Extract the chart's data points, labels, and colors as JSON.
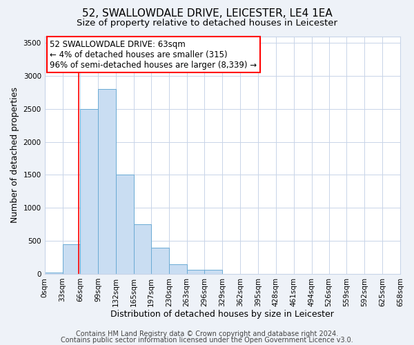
{
  "title": "52, SWALLOWDALE DRIVE, LEICESTER, LE4 1EA",
  "subtitle": "Size of property relative to detached houses in Leicester",
  "xlabel": "Distribution of detached houses by size in Leicester",
  "ylabel": "Number of detached properties",
  "bin_edges": [
    0,
    33,
    66,
    99,
    132,
    165,
    197,
    230,
    263,
    296,
    329,
    362,
    395,
    428,
    461,
    494,
    526,
    559,
    592,
    625,
    658
  ],
  "bin_labels": [
    "0sqm",
    "33sqm",
    "66sqm",
    "99sqm",
    "132sqm",
    "165sqm",
    "197sqm",
    "230sqm",
    "263sqm",
    "296sqm",
    "329sqm",
    "362sqm",
    "395sqm",
    "428sqm",
    "461sqm",
    "494sqm",
    "526sqm",
    "559sqm",
    "592sqm",
    "625sqm",
    "658sqm"
  ],
  "bar_heights": [
    20,
    450,
    2500,
    2800,
    1500,
    750,
    400,
    150,
    60,
    60,
    0,
    0,
    0,
    0,
    0,
    0,
    0,
    0,
    0,
    0
  ],
  "bar_color": "#c9ddf2",
  "bar_edge_color": "#6aaad4",
  "vline_x": 63,
  "vline_color": "red",
  "annotation_line1": "52 SWALLOWDALE DRIVE: 63sqm",
  "annotation_line2": "← 4% of detached houses are smaller (315)",
  "annotation_line3": "96% of semi-detached houses are larger (8,339) →",
  "annotation_box_color": "white",
  "annotation_box_edge_color": "red",
  "ylim": [
    0,
    3600
  ],
  "yticks": [
    0,
    500,
    1000,
    1500,
    2000,
    2500,
    3000,
    3500
  ],
  "footer_line1": "Contains HM Land Registry data © Crown copyright and database right 2024.",
  "footer_line2": "Contains public sector information licensed under the Open Government Licence v3.0.",
  "bg_color": "#eef2f8",
  "plot_bg_color": "#ffffff",
  "grid_color": "#c8d4e8",
  "title_fontsize": 11,
  "subtitle_fontsize": 9.5,
  "axis_label_fontsize": 9,
  "tick_fontsize": 7.5,
  "annotation_fontsize": 8.5,
  "footer_fontsize": 7
}
